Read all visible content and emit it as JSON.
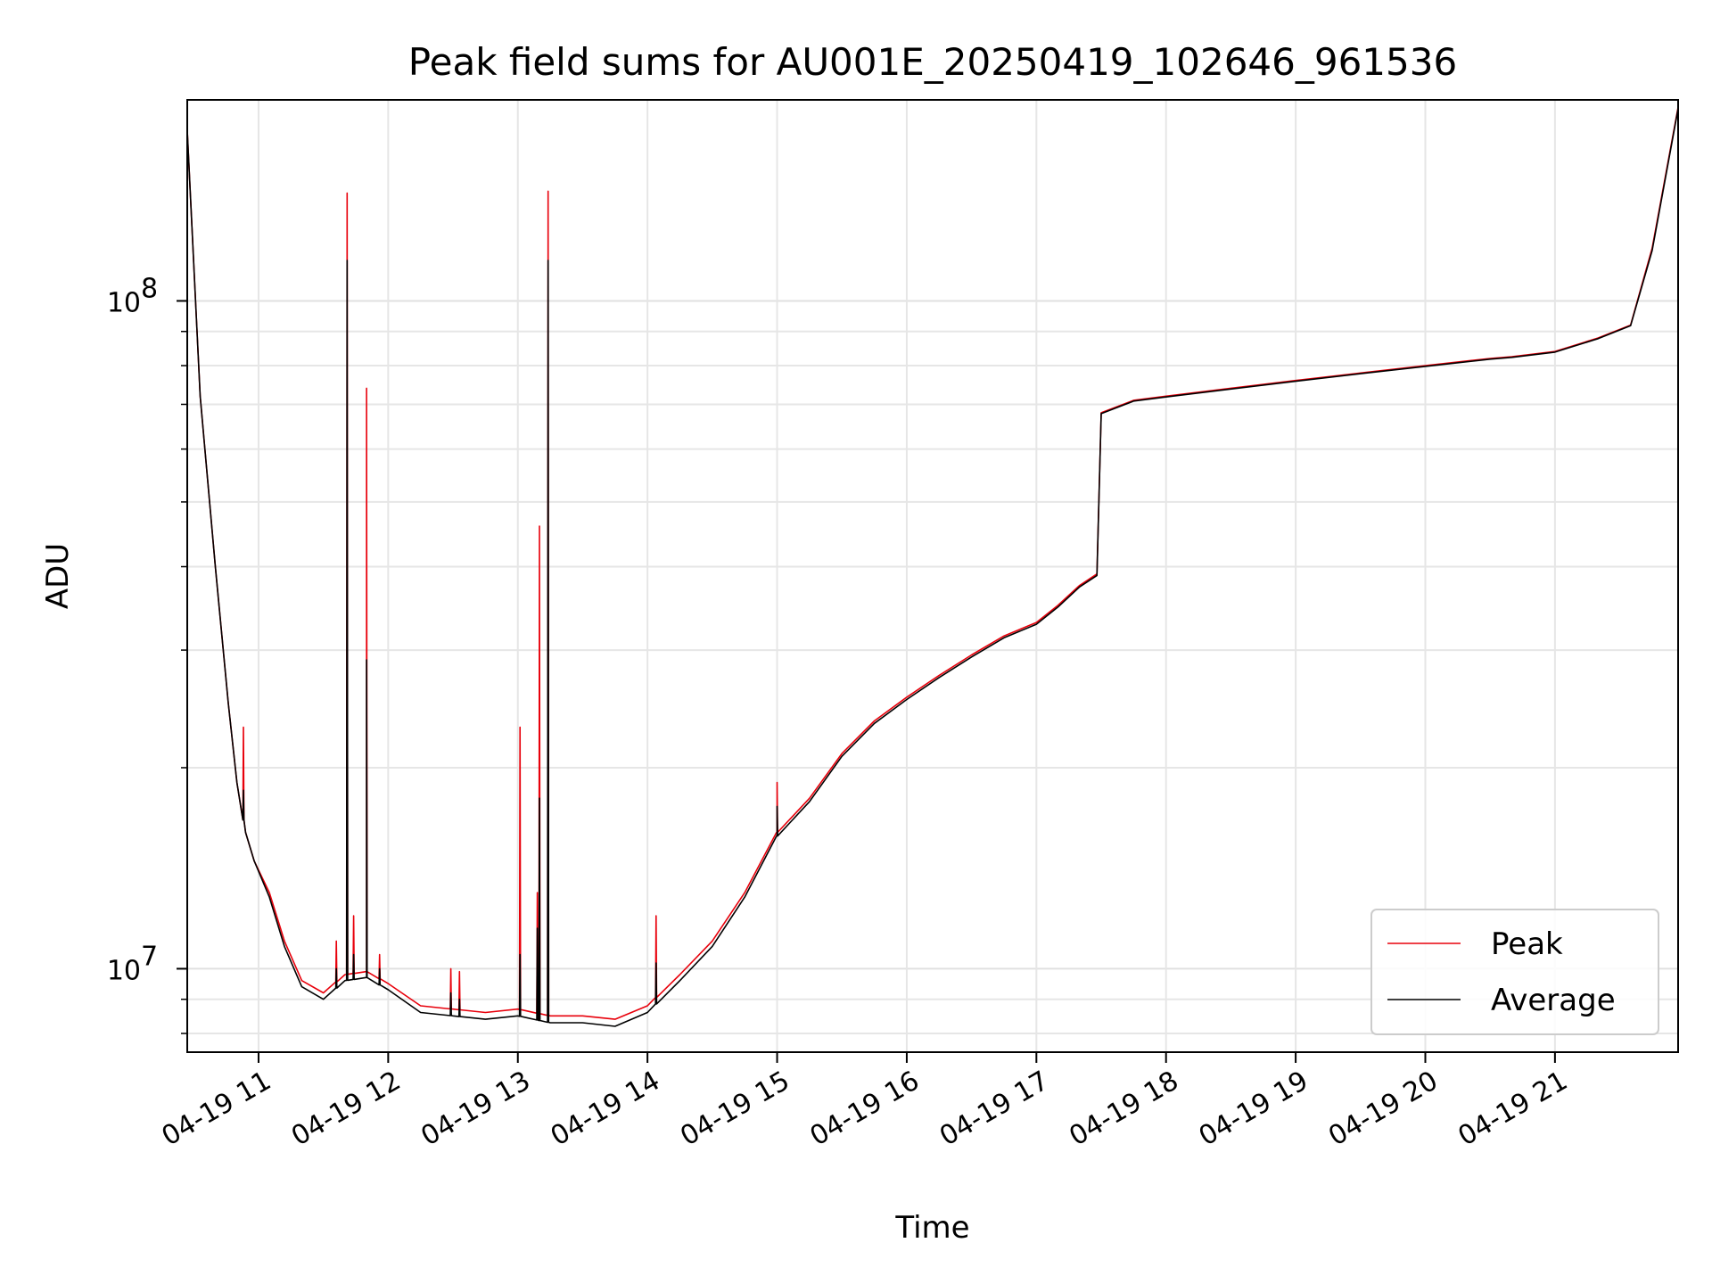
{
  "chart_data": {
    "type": "line",
    "title": "Peak field sums for AU001E_20250419_102646_961536",
    "xlabel": "Time",
    "ylabel": "ADU",
    "y_scale": "log",
    "grid": true,
    "grid_minor": true,
    "legend_position": "bottom-right",
    "xlim": [
      "2025-04-19 10:27",
      "2025-04-19 21:57"
    ],
    "ylim": [
      7500000,
      200000000
    ],
    "x_ticks": [
      "04-19 11",
      "04-19 12",
      "04-19 13",
      "04-19 14",
      "04-19 15",
      "04-19 16",
      "04-19 17",
      "04-19 18",
      "04-19 19",
      "04-19 20",
      "04-19 21"
    ],
    "y_ticks": [
      {
        "value": 10000000,
        "base": "10",
        "exp": "7"
      },
      {
        "value": 100000000,
        "base": "10",
        "exp": "8"
      }
    ],
    "x": [
      "10:27",
      "10:33",
      "10:40",
      "10:46",
      "10:50",
      "10:54",
      "10:58",
      "11:05",
      "11:12",
      "11:20",
      "11:30",
      "11:40",
      "11:50",
      "12:00",
      "12:15",
      "12:30",
      "12:45",
      "13:00",
      "13:15",
      "13:30",
      "13:45",
      "14:00",
      "14:15",
      "14:30",
      "14:45",
      "15:00",
      "15:15",
      "15:30",
      "15:45",
      "16:00",
      "16:15",
      "16:30",
      "16:45",
      "17:00",
      "17:10",
      "17:20",
      "17:28",
      "17:30",
      "17:45",
      "18:00",
      "18:30",
      "19:00",
      "19:30",
      "20:00",
      "20:30",
      "20:40",
      "21:00",
      "21:20",
      "21:35",
      "21:45",
      "21:57"
    ],
    "series": [
      {
        "name": "Peak",
        "color": "#e8000b",
        "values": [
          180000000,
          72000000,
          40000000,
          25000000,
          19000000,
          16000000,
          14500000,
          13000000,
          11000000,
          9600000,
          9200000,
          9800000,
          9900000,
          9500000,
          8800000,
          8700000,
          8600000,
          8700000,
          8500000,
          8500000,
          8400000,
          8800000,
          9800000,
          11000000,
          13000000,
          16000000,
          18000000,
          21000000,
          23500000,
          25500000,
          27500000,
          29500000,
          31500000,
          33000000,
          35000000,
          37500000,
          39000000,
          68000000,
          71000000,
          72000000,
          74000000,
          76000000,
          78000000,
          80000000,
          82000000,
          82500000,
          84000000,
          88000000,
          92000000,
          120000000,
          195000000
        ]
      },
      {
        "name": "Average",
        "color": "#000000",
        "values": [
          180000000,
          72000000,
          40000000,
          25000000,
          19000000,
          16000000,
          14500000,
          12800000,
          10800000,
          9400000,
          9000000,
          9600000,
          9700000,
          9300000,
          8600000,
          8500000,
          8400000,
          8500000,
          8300000,
          8300000,
          8200000,
          8600000,
          9600000,
          10800000,
          12800000,
          15800000,
          17800000,
          20800000,
          23300000,
          25300000,
          27300000,
          29300000,
          31300000,
          32800000,
          34800000,
          37300000,
          38800000,
          67800000,
          70800000,
          71800000,
          73800000,
          75800000,
          77800000,
          79800000,
          81800000,
          82300000,
          83800000,
          87800000,
          91800000,
          119000000,
          194000000
        ]
      }
    ],
    "spikes": [
      {
        "time": "10:53",
        "peak": 23000000,
        "average": 18500000
      },
      {
        "time": "11:36",
        "peak": 11000000,
        "average": 10000000
      },
      {
        "time": "11:41",
        "peak": 145000000,
        "average": 115000000
      },
      {
        "time": "11:44",
        "peak": 12000000,
        "average": 10500000
      },
      {
        "time": "11:50",
        "peak": 74000000,
        "average": 29000000
      },
      {
        "time": "11:56",
        "peak": 10500000,
        "average": 10000000
      },
      {
        "time": "12:29",
        "peak": 10000000,
        "average": 9200000
      },
      {
        "time": "12:33",
        "peak": 9900000,
        "average": 9000000
      },
      {
        "time": "13:01",
        "peak": 23000000,
        "average": 10500000
      },
      {
        "time": "13:09",
        "peak": 13000000,
        "average": 11500000
      },
      {
        "time": "13:10",
        "peak": 46000000,
        "average": 18000000
      },
      {
        "time": "13:14",
        "peak": 146000000,
        "average": 115000000
      },
      {
        "time": "14:04",
        "peak": 12000000,
        "average": 10200000
      },
      {
        "time": "15:00",
        "peak": 19000000,
        "average": 17500000
      }
    ]
  }
}
